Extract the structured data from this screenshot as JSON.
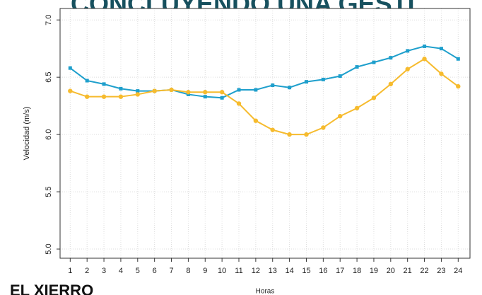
{
  "slide": {
    "heading": "CONCLUYENDO UNA GESTI",
    "footer": "EL XIERRO"
  },
  "chart_data": {
    "type": "line",
    "xlabel": "Horas",
    "ylabel": "Velocidad (m/s)",
    "x": [
      1,
      2,
      3,
      4,
      5,
      6,
      7,
      8,
      9,
      10,
      11,
      12,
      13,
      14,
      15,
      16,
      17,
      18,
      19,
      20,
      21,
      22,
      23,
      24
    ],
    "series": [
      {
        "color": "#1e9fcc",
        "marker": "square",
        "values": [
          6.58,
          6.47,
          6.44,
          6.4,
          6.38,
          6.38,
          6.39,
          6.35,
          6.33,
          6.32,
          6.39,
          6.39,
          6.43,
          6.41,
          6.46,
          6.48,
          6.51,
          6.59,
          6.63,
          6.67,
          6.73,
          6.77,
          6.75,
          6.66
        ]
      },
      {
        "color": "#f6bb2e",
        "marker": "circle",
        "values": [
          6.38,
          6.33,
          6.33,
          6.33,
          6.35,
          6.38,
          6.39,
          6.37,
          6.37,
          6.37,
          6.27,
          6.12,
          6.04,
          6.0,
          6.0,
          6.06,
          6.16,
          6.23,
          6.32,
          6.44,
          6.57,
          6.66,
          6.53,
          6.42
        ]
      }
    ],
    "xlim": [
      0.4,
      24.7
    ],
    "xticks": [
      1,
      2,
      3,
      4,
      5,
      6,
      7,
      8,
      9,
      10,
      11,
      12,
      13,
      14,
      15,
      16,
      17,
      18,
      19,
      20,
      21,
      22,
      23,
      24
    ],
    "ylim": [
      4.92,
      7.1
    ],
    "yticks": [
      {
        "value": 5,
        "label": "5.0"
      },
      {
        "value": 5.5,
        "label": "5.5"
      },
      {
        "value": 6,
        "label": "6.0"
      },
      {
        "value": 6.5,
        "label": "6.5"
      },
      {
        "value": 7,
        "label": "7.0"
      }
    ],
    "grid": true
  }
}
